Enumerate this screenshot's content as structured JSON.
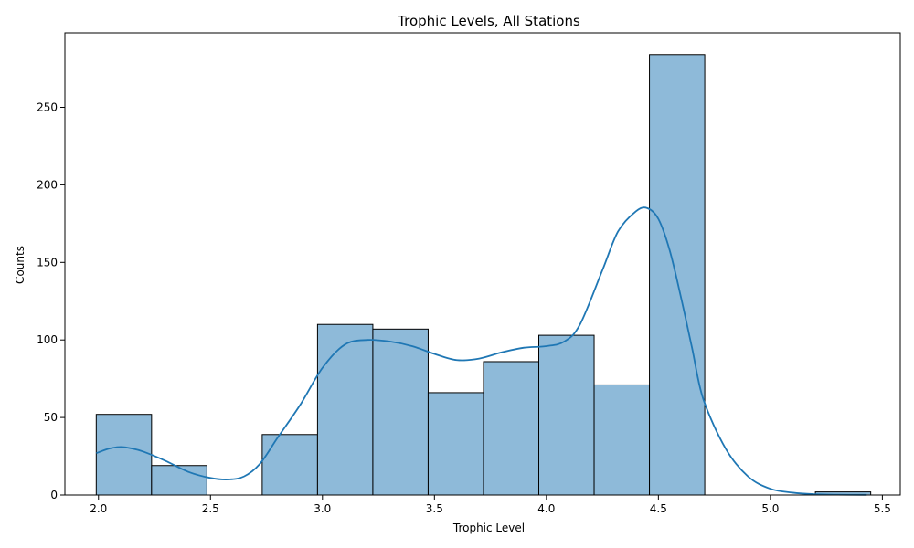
{
  "chart_data": {
    "type": "bar",
    "title": "Trophic Levels, All Stations",
    "xlabel": "Trophic Level",
    "ylabel": "Counts",
    "xlim": [
      1.85,
      5.58
    ],
    "ylim": [
      0,
      298
    ],
    "xticks": [
      2.0,
      2.5,
      3.0,
      3.5,
      4.0,
      4.5,
      5.0,
      5.5
    ],
    "xtick_labels": [
      "2.0",
      "2.5",
      "3.0",
      "3.5",
      "4.0",
      "4.5",
      "5.0",
      "5.5"
    ],
    "yticks": [
      0,
      50,
      100,
      150,
      200,
      250
    ],
    "ytick_labels": [
      "0",
      "50",
      "100",
      "150",
      "200",
      "250"
    ],
    "bin_edges": [
      1.99,
      2.237,
      2.484,
      2.731,
      2.978,
      3.225,
      3.472,
      3.719,
      3.966,
      4.213,
      4.46,
      4.707,
      4.954,
      5.201,
      5.448
    ],
    "counts": [
      52,
      19,
      0,
      39,
      110,
      107,
      66,
      86,
      103,
      71,
      284,
      0,
      0,
      2
    ],
    "kde": {
      "x": [
        1.99,
        2.05,
        2.1,
        2.15,
        2.2,
        2.3,
        2.4,
        2.5,
        2.58,
        2.65,
        2.72,
        2.8,
        2.9,
        3.0,
        3.1,
        3.2,
        3.3,
        3.4,
        3.5,
        3.6,
        3.7,
        3.8,
        3.9,
        4.0,
        4.08,
        4.15,
        4.25,
        4.32,
        4.4,
        4.45,
        4.5,
        4.55,
        4.6,
        4.65,
        4.7,
        4.8,
        4.9,
        5.0,
        5.1,
        5.2,
        5.3,
        5.43
      ],
      "y": [
        27,
        30,
        31,
        30,
        28,
        22,
        15,
        11,
        10,
        12,
        20,
        37,
        58,
        82,
        97,
        100,
        99,
        96,
        91,
        87,
        88,
        92,
        95,
        96,
        99,
        110,
        145,
        170,
        183,
        185,
        178,
        158,
        128,
        95,
        62,
        30,
        12,
        4,
        1.5,
        0.5,
        0.2,
        0.1
      ]
    },
    "colors": {
      "bar_fill": "#8ebad9",
      "bar_edge": "#000000",
      "kde_line": "#1f77b4"
    },
    "grid": false,
    "legend": "none"
  }
}
